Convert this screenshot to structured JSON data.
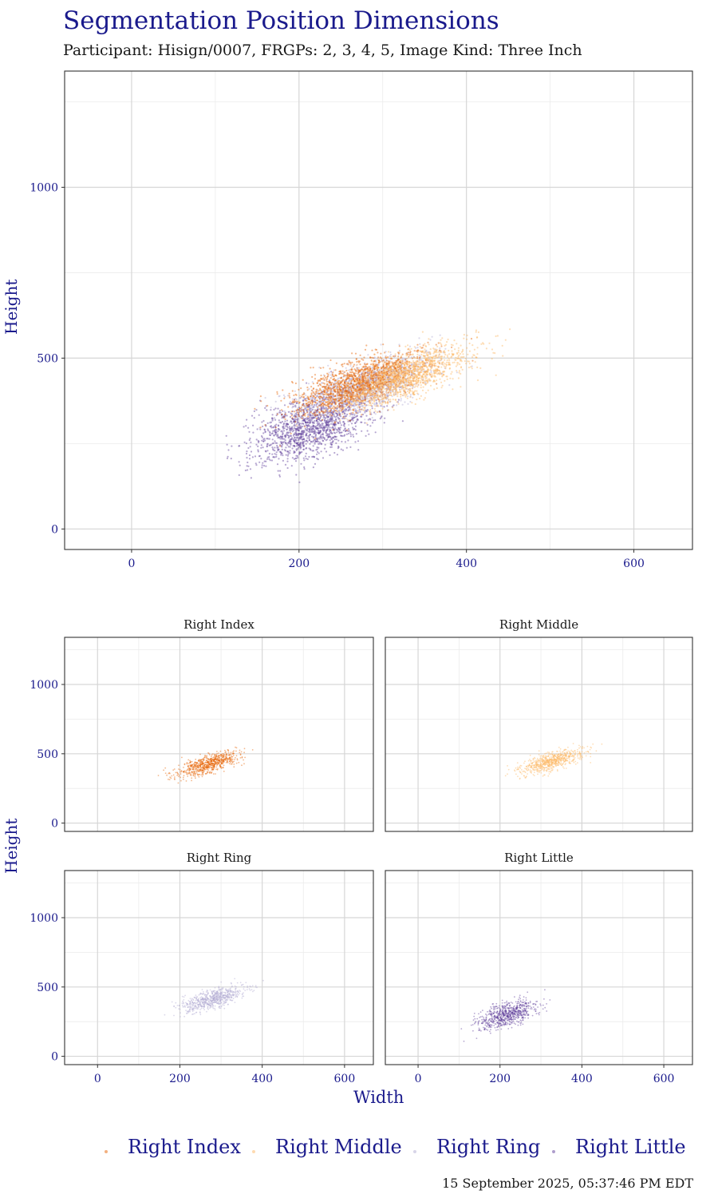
{
  "header": {
    "title": "Segmentation Position Dimensions",
    "subtitle": "Participant: Hisign/0007, FRGPs: 2, 3, 4, 5, Image Kind: Three Inch"
  },
  "footer": {
    "timestamp": "15 September 2025, 05:37:46 PM EDT"
  },
  "chart_data": {
    "type": "scatter",
    "xlabel": "Width",
    "ylabel": "Height",
    "xlim": [
      -80,
      670
    ],
    "ylim": [
      -60,
      1340
    ],
    "x_ticks": [
      0,
      200,
      400,
      600
    ],
    "y_ticks": [
      0,
      500,
      1000
    ],
    "x_tick_labels": [
      "0",
      "200",
      "400",
      "600"
    ],
    "y_tick_labels": [
      "0",
      "500",
      "1000"
    ],
    "grid": true,
    "legend_position": "bottom",
    "series": [
      {
        "name": "Right Index",
        "color": "#e66101",
        "center": [
          270,
          425
        ],
        "width_sd": 38,
        "height_sd": 33,
        "slope": 0.9,
        "x_range": [
          120,
          420
        ],
        "y_range": [
          180,
          560
        ]
      },
      {
        "name": "Right Middle",
        "color": "#fdb863",
        "center": [
          325,
          445
        ],
        "width_sd": 40,
        "height_sd": 32,
        "slope": 0.9,
        "x_range": [
          160,
          460
        ],
        "y_range": [
          200,
          600
        ]
      },
      {
        "name": "Right Ring",
        "color": "#b2abd2",
        "center": [
          280,
          415
        ],
        "width_sd": 40,
        "height_sd": 34,
        "slope": 0.9,
        "x_range": [
          140,
          430
        ],
        "y_range": [
          160,
          580
        ]
      },
      {
        "name": "Right Little",
        "color": "#5e3c99",
        "center": [
          215,
          300
        ],
        "width_sd": 35,
        "height_sd": 45,
        "slope": 0.9,
        "x_range": [
          100,
          400
        ],
        "y_range": [
          90,
          520
        ]
      }
    ],
    "combined_draw_order": [
      "Right Little",
      "Right Ring",
      "Right Index",
      "Right Middle"
    ],
    "facets": [
      {
        "title": "Right Index",
        "series": "Right Index"
      },
      {
        "title": "Right Middle",
        "series": "Right Middle"
      },
      {
        "title": "Right Ring",
        "series": "Right Ring"
      },
      {
        "title": "Right Little",
        "series": "Right Little"
      }
    ]
  }
}
